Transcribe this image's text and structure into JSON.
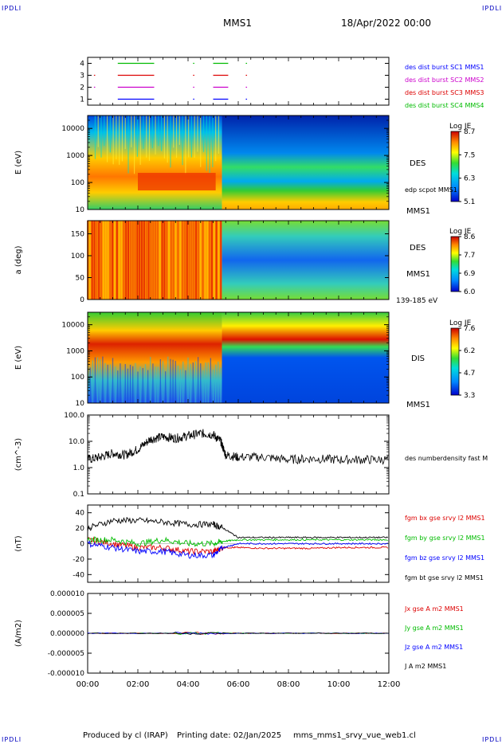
{
  "header": {
    "corner_label": "IPDLI",
    "spacecraft": "MMS1",
    "date": "18/Apr/2022 00:00"
  },
  "footer": {
    "produced_by": "Produced by cl (IRAP)",
    "printing_date": "Printing date: 02/Jan/2025",
    "filename": "mms_mms1_srvy_vue_web1.cl"
  },
  "colors": {
    "mms1": "#0000ff",
    "mms2": "#cc00cc",
    "mms3": "#dd0000",
    "mms4": "#00bb00",
    "axis": "#000000"
  },
  "chart_data": [
    {
      "type": "timeline",
      "x_ticks": [
        "00:00",
        "02:00",
        "04:00",
        "06:00",
        "08:00",
        "10:00",
        "12:00"
      ],
      "yticks": [
        "1",
        "2",
        "3",
        "4"
      ],
      "ylim": [
        0.5,
        4.5
      ],
      "series": [
        {
          "name": "des dist burst SC1 MMS1",
          "color": "#0000ff",
          "y": 1,
          "intervals": [
            [
              1.2,
              2.65
            ],
            [
              4.2,
              4.25
            ],
            [
              5.0,
              5.6
            ],
            [
              6.3,
              6.35
            ]
          ]
        },
        {
          "name": "des dist burst SC2 MMS2",
          "color": "#cc00cc",
          "y": 2,
          "intervals": [
            [
              0.25,
              0.3
            ],
            [
              1.2,
              2.65
            ],
            [
              4.2,
              4.25
            ],
            [
              5.0,
              5.6
            ],
            [
              6.3,
              6.35
            ]
          ]
        },
        {
          "name": "des dist burst SC3 MMS3",
          "color": "#dd0000",
          "y": 3,
          "intervals": [
            [
              0.25,
              0.3
            ],
            [
              1.2,
              2.65
            ],
            [
              4.2,
              4.25
            ],
            [
              5.0,
              5.6
            ],
            [
              6.3,
              6.35
            ]
          ]
        },
        {
          "name": "des dist burst SC4 MMS4",
          "color": "#00bb00",
          "y": 4,
          "intervals": [
            [
              1.2,
              2.65
            ],
            [
              4.2,
              4.25
            ],
            [
              5.0,
              5.6
            ],
            [
              6.3,
              6.35
            ]
          ]
        }
      ]
    },
    {
      "type": "heatmap",
      "ylabel": "E (eV)",
      "scale": "log",
      "yticks": [
        "10",
        "100",
        "1000",
        "10000"
      ],
      "ylim": [
        10,
        30000
      ],
      "colorbar": {
        "title": "Log JE",
        "ticks": [
          "8.7",
          "7.5",
          "6.3",
          "5.1"
        ]
      },
      "right_labels": {
        "instrument": "DES",
        "overlay": "edp scpot MMS1",
        "spacecraft": "MMS1"
      },
      "regions": [
        {
          "t": [
            0,
            5.35
          ],
          "description": "broad plasma sheet population peaking ~100-1000 eV"
        },
        {
          "t": [
            5.35,
            12
          ],
          "description": "lobe-like, low-energy population below ~100 eV, background elsewhere"
        }
      ]
    },
    {
      "type": "heatmap",
      "ylabel": "a (deg)",
      "yticks": [
        "0",
        "50",
        "100",
        "150"
      ],
      "ylim": [
        0,
        180
      ],
      "colorbar": {
        "title": "Log JE",
        "ticks": [
          "8.6",
          "7.7",
          "6.9",
          "6.0"
        ]
      },
      "right_labels": {
        "instrument": "DES",
        "spacecraft": "MMS1",
        "energy": "139-185 eV"
      }
    },
    {
      "type": "heatmap",
      "ylabel": "E (eV)",
      "scale": "log",
      "yticks": [
        "10",
        "100",
        "1000",
        "10000"
      ],
      "ylim": [
        10,
        30000
      ],
      "colorbar": {
        "title": "Log JE",
        "ticks": [
          "7.6",
          "6.2",
          "4.7",
          "3.3"
        ]
      },
      "right_labels": {
        "instrument": "DIS",
        "spacecraft": "MMS1"
      }
    },
    {
      "type": "line",
      "ylabel": "(cm^-3)",
      "scale": "log",
      "yticks": [
        "0.1",
        "1.0",
        "10.0",
        "100.0"
      ],
      "ylim": [
        0.1,
        100
      ],
      "series": [
        {
          "name": "des numberdensity fast M",
          "color": "#000000",
          "x": [
            0,
            0.5,
            1,
            1.5,
            2,
            2.5,
            3,
            3.5,
            4,
            4.5,
            5,
            5.3,
            5.5,
            6,
            7,
            8,
            9,
            10,
            11,
            12
          ],
          "y": [
            2.0,
            2.5,
            3.5,
            3.0,
            5.0,
            12.0,
            15.0,
            13.0,
            16.0,
            20.0,
            18.0,
            10.0,
            3.0,
            2.5,
            2.5,
            2.0,
            2.2,
            2.0,
            2.0,
            2.0
          ]
        }
      ],
      "right_label": "des numberdensity fast M"
    },
    {
      "type": "line",
      "ylabel": "(nT)",
      "yticks": [
        "-40",
        "-20",
        "0",
        "20",
        "40"
      ],
      "ylim": [
        -50,
        50
      ],
      "series": [
        {
          "name": "fgm bx gse srvy l2 MMS1",
          "color": "#dd0000",
          "x": [
            0,
            1,
            2,
            3,
            4,
            5,
            5.4,
            6,
            7,
            8,
            9,
            10,
            11,
            12
          ],
          "y": [
            5,
            0,
            -5,
            -5,
            -10,
            -10,
            -5,
            -5,
            -6,
            -6,
            -6,
            -5,
            -5,
            -5
          ]
        },
        {
          "name": "fgm by gse srvy l2 MMS1",
          "color": "#00bb00",
          "x": [
            0,
            1,
            2,
            3,
            4,
            5,
            5.4,
            6,
            7,
            8,
            9,
            10,
            11,
            12
          ],
          "y": [
            5,
            5,
            0,
            5,
            0,
            0,
            3,
            5,
            5,
            5,
            5,
            5,
            5,
            5
          ]
        },
        {
          "name": "fgm bz gse srvy l2 MMS1",
          "color": "#0000ff",
          "x": [
            0,
            1,
            2,
            3,
            4,
            5,
            5.4,
            6,
            7,
            8,
            9,
            10,
            11,
            12
          ],
          "y": [
            0,
            -5,
            -10,
            -10,
            -15,
            -15,
            -5,
            0,
            0,
            0,
            0,
            0,
            0,
            0
          ]
        },
        {
          "name": "fgm bt gse srvy l2 MMS1",
          "color": "#000000",
          "x": [
            0,
            1,
            2,
            3,
            4,
            5,
            5.4,
            6,
            7,
            8,
            9,
            10,
            11,
            12
          ],
          "y": [
            20,
            30,
            30,
            28,
            25,
            25,
            20,
            8,
            8,
            8,
            8,
            8,
            8,
            8
          ]
        }
      ]
    },
    {
      "type": "line",
      "ylabel": "(A/m2)",
      "yticks": [
        "-0.000010",
        "-0.000005",
        "0.000000",
        "0.000005",
        "0.000010"
      ],
      "ylim": [
        -1e-05,
        1e-05
      ],
      "series": [
        {
          "name": "Jx gse A m2 MMS1",
          "color": "#dd0000",
          "x": [
            0,
            12
          ],
          "y": [
            0,
            0
          ]
        },
        {
          "name": "Jy gse A m2 MMS1",
          "color": "#00bb00",
          "x": [
            0,
            12
          ],
          "y": [
            0,
            0
          ]
        },
        {
          "name": "Jz gse A m2 MMS1",
          "color": "#0000ff",
          "x": [
            0,
            12
          ],
          "y": [
            0,
            0
          ]
        },
        {
          "name": "J A m2 MMS1",
          "color": "#000000",
          "x": [
            0,
            12
          ],
          "y": [
            0,
            0
          ]
        }
      ]
    }
  ]
}
